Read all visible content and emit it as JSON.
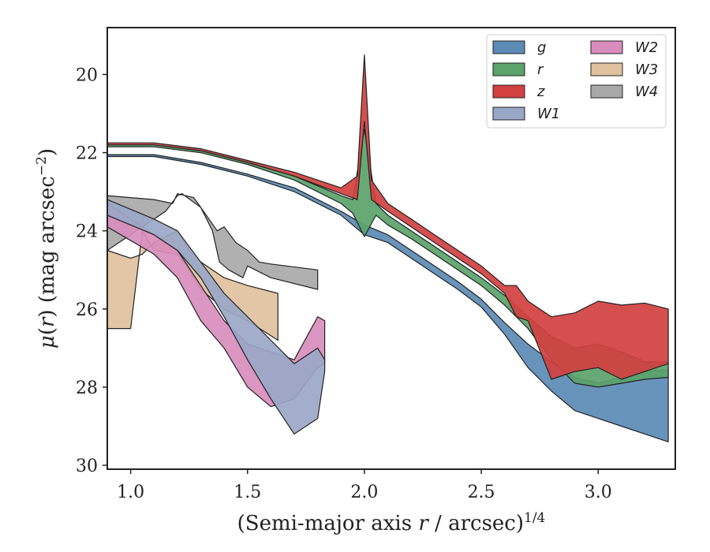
{
  "chart_data": {
    "type": "area",
    "xlabel": "(Semi-major axis r / arcsec)^1/4",
    "ylabel": "μ(r) (mag arcsec^-2)",
    "xlim": [
      0.9,
      3.33
    ],
    "ylim": [
      30.1,
      18.8
    ],
    "y_inverted": true,
    "x_ticks": [
      "1.0",
      "1.5",
      "2.0",
      "2.5",
      "3.0"
    ],
    "x_tick_values": [
      1.0,
      1.5,
      2.0,
      2.5,
      3.0
    ],
    "y_ticks": [
      "20",
      "22",
      "24",
      "26",
      "28",
      "30"
    ],
    "y_tick_values": [
      20,
      22,
      24,
      26,
      28,
      30
    ],
    "legend_position": "top-right",
    "series": [
      {
        "name": "W4",
        "color": "#a9a9a9",
        "upper": [
          [
            0.9,
            23.1
          ],
          [
            1.1,
            23.2
          ],
          [
            1.18,
            23.3
          ],
          [
            1.2,
            23.05
          ],
          [
            1.27,
            23.15
          ],
          [
            1.3,
            23.4
          ],
          [
            1.37,
            24.0
          ],
          [
            1.4,
            23.9
          ],
          [
            1.45,
            24.3
          ],
          [
            1.5,
            24.5
          ],
          [
            1.55,
            24.8
          ],
          [
            1.6,
            24.85
          ],
          [
            1.8,
            25.0
          ]
        ],
        "lower": [
          [
            0.9,
            24.5
          ],
          [
            1.1,
            23.7
          ],
          [
            1.15,
            23.5
          ],
          [
            1.2,
            23.1
          ],
          [
            1.22,
            23.05
          ],
          [
            1.3,
            23.4
          ],
          [
            1.35,
            24.0
          ],
          [
            1.38,
            24.8
          ],
          [
            1.42,
            25.0
          ],
          [
            1.48,
            25.2
          ],
          [
            1.5,
            24.9
          ],
          [
            1.6,
            25.2
          ],
          [
            1.8,
            25.5
          ]
        ]
      },
      {
        "name": "W3",
        "color": "#dfc19d",
        "upper": [
          [
            0.9,
            24.5
          ],
          [
            1.0,
            24.7
          ],
          [
            1.05,
            24.6
          ],
          [
            1.1,
            24.3
          ],
          [
            1.2,
            24.0
          ],
          [
            1.25,
            24.5
          ],
          [
            1.3,
            24.8
          ],
          [
            1.4,
            25.2
          ],
          [
            1.5,
            25.4
          ],
          [
            1.63,
            25.6
          ]
        ],
        "lower": [
          [
            0.9,
            26.5
          ],
          [
            1.0,
            26.5
          ],
          [
            1.05,
            24.0
          ],
          [
            1.1,
            24.5
          ],
          [
            1.2,
            24.6
          ],
          [
            1.25,
            25.0
          ],
          [
            1.3,
            25.5
          ],
          [
            1.4,
            26.0
          ],
          [
            1.5,
            26.3
          ],
          [
            1.63,
            26.8
          ]
        ]
      },
      {
        "name": "W2",
        "color": "#d98dbd",
        "upper": [
          [
            0.9,
            23.3
          ],
          [
            1.1,
            24.1
          ],
          [
            1.2,
            24.5
          ],
          [
            1.3,
            25.4
          ],
          [
            1.4,
            26.3
          ],
          [
            1.5,
            26.9
          ],
          [
            1.6,
            27.1
          ],
          [
            1.7,
            27.3
          ],
          [
            1.8,
            26.2
          ],
          [
            1.83,
            26.3
          ]
        ],
        "lower": [
          [
            0.9,
            23.9
          ],
          [
            1.1,
            24.6
          ],
          [
            1.2,
            25.2
          ],
          [
            1.3,
            26.3
          ],
          [
            1.4,
            27.0
          ],
          [
            1.5,
            28.0
          ],
          [
            1.6,
            28.5
          ],
          [
            1.7,
            28.3
          ],
          [
            1.8,
            27.5
          ],
          [
            1.83,
            27.4
          ]
        ]
      },
      {
        "name": "W1",
        "color": "#9aa7c7",
        "upper": [
          [
            0.9,
            23.2
          ],
          [
            1.1,
            23.7
          ],
          [
            1.2,
            24.0
          ],
          [
            1.3,
            24.8
          ],
          [
            1.4,
            25.6
          ],
          [
            1.5,
            26.2
          ],
          [
            1.6,
            26.8
          ],
          [
            1.7,
            27.4
          ],
          [
            1.8,
            27.0
          ],
          [
            1.83,
            27.3
          ]
        ],
        "lower": [
          [
            0.9,
            23.6
          ],
          [
            1.1,
            24.1
          ],
          [
            1.2,
            24.5
          ],
          [
            1.3,
            25.2
          ],
          [
            1.4,
            26.2
          ],
          [
            1.5,
            27.3
          ],
          [
            1.6,
            28.3
          ],
          [
            1.7,
            29.2
          ],
          [
            1.8,
            28.8
          ],
          [
            1.83,
            27.6
          ]
        ]
      },
      {
        "name": "g",
        "color": "#5b8ab5",
        "upper": [
          [
            0.9,
            22.05
          ],
          [
            1.1,
            22.05
          ],
          [
            1.3,
            22.25
          ],
          [
            1.5,
            22.55
          ],
          [
            1.7,
            22.9
          ],
          [
            1.9,
            23.5
          ],
          [
            2.0,
            23.85
          ],
          [
            2.1,
            24.1
          ],
          [
            2.2,
            24.5
          ],
          [
            2.3,
            24.9
          ],
          [
            2.4,
            25.3
          ],
          [
            2.5,
            25.75
          ],
          [
            2.6,
            26.35
          ],
          [
            2.7,
            26.9
          ],
          [
            2.8,
            27.35
          ],
          [
            2.9,
            27.75
          ],
          [
            3.0,
            27.9
          ],
          [
            3.1,
            27.75
          ],
          [
            3.2,
            27.6
          ],
          [
            3.3,
            27.55
          ]
        ],
        "lower": [
          [
            0.9,
            22.1
          ],
          [
            1.1,
            22.1
          ],
          [
            1.3,
            22.3
          ],
          [
            1.5,
            22.6
          ],
          [
            1.7,
            23.0
          ],
          [
            1.9,
            23.6
          ],
          [
            2.0,
            24.1
          ],
          [
            2.1,
            24.3
          ],
          [
            2.2,
            24.7
          ],
          [
            2.3,
            25.1
          ],
          [
            2.4,
            25.5
          ],
          [
            2.5,
            25.95
          ],
          [
            2.6,
            26.65
          ],
          [
            2.7,
            27.5
          ],
          [
            2.8,
            28.1
          ],
          [
            2.9,
            28.6
          ],
          [
            3.0,
            28.8
          ],
          [
            3.1,
            29.0
          ],
          [
            3.2,
            29.2
          ],
          [
            3.3,
            29.4
          ]
        ]
      },
      {
        "name": "r",
        "color": "#5aa36a",
        "upper": [
          [
            0.9,
            21.8
          ],
          [
            1.1,
            21.8
          ],
          [
            1.3,
            21.95
          ],
          [
            1.5,
            22.25
          ],
          [
            1.7,
            22.6
          ],
          [
            1.9,
            23.1
          ],
          [
            1.95,
            23.2
          ],
          [
            2.0,
            21.4
          ],
          [
            2.05,
            23.3
          ],
          [
            2.1,
            23.6
          ],
          [
            2.2,
            24.0
          ],
          [
            2.3,
            24.4
          ],
          [
            2.4,
            24.8
          ],
          [
            2.5,
            25.2
          ],
          [
            2.6,
            25.65
          ],
          [
            2.7,
            26.2
          ],
          [
            2.8,
            26.7
          ],
          [
            2.9,
            27.0
          ],
          [
            3.0,
            26.9
          ],
          [
            3.1,
            27.1
          ],
          [
            3.2,
            27.35
          ],
          [
            3.3,
            27.35
          ]
        ],
        "lower": [
          [
            0.9,
            21.85
          ],
          [
            1.1,
            21.85
          ],
          [
            1.3,
            22.0
          ],
          [
            1.5,
            22.3
          ],
          [
            1.7,
            22.7
          ],
          [
            1.9,
            23.3
          ],
          [
            1.95,
            23.55
          ],
          [
            2.0,
            24.15
          ],
          [
            2.05,
            23.6
          ],
          [
            2.1,
            23.85
          ],
          [
            2.2,
            24.2
          ],
          [
            2.3,
            24.6
          ],
          [
            2.4,
            25.0
          ],
          [
            2.5,
            25.4
          ],
          [
            2.6,
            25.9
          ],
          [
            2.7,
            26.5
          ],
          [
            2.8,
            27.3
          ],
          [
            2.9,
            27.9
          ],
          [
            3.0,
            28.0
          ],
          [
            3.1,
            27.9
          ],
          [
            3.2,
            27.8
          ],
          [
            3.3,
            27.75
          ]
        ]
      },
      {
        "name": "z",
        "color": "#d24040",
        "upper": [
          [
            0.9,
            21.75
          ],
          [
            1.1,
            21.75
          ],
          [
            1.3,
            21.9
          ],
          [
            1.5,
            22.2
          ],
          [
            1.7,
            22.5
          ],
          [
            1.9,
            22.9
          ],
          [
            1.97,
            22.6
          ],
          [
            2.0,
            19.5
          ],
          [
            2.03,
            22.7
          ],
          [
            2.1,
            23.3
          ],
          [
            2.2,
            23.7
          ],
          [
            2.3,
            24.1
          ],
          [
            2.4,
            24.5
          ],
          [
            2.5,
            24.9
          ],
          [
            2.6,
            25.4
          ],
          [
            2.65,
            25.4
          ],
          [
            2.7,
            25.8
          ],
          [
            2.8,
            26.2
          ],
          [
            2.9,
            26.1
          ],
          [
            3.0,
            25.8
          ],
          [
            3.1,
            25.9
          ],
          [
            3.2,
            25.85
          ],
          [
            3.3,
            26.0
          ]
        ],
        "lower": [
          [
            0.9,
            21.8
          ],
          [
            1.1,
            21.8
          ],
          [
            1.3,
            21.95
          ],
          [
            1.5,
            22.25
          ],
          [
            1.7,
            22.6
          ],
          [
            1.9,
            23.05
          ],
          [
            1.97,
            23.2
          ],
          [
            2.0,
            21.2
          ],
          [
            2.03,
            23.2
          ],
          [
            2.1,
            23.5
          ],
          [
            2.2,
            23.9
          ],
          [
            2.3,
            24.3
          ],
          [
            2.4,
            24.7
          ],
          [
            2.5,
            25.1
          ],
          [
            2.6,
            25.6
          ],
          [
            2.65,
            26.2
          ],
          [
            2.7,
            26.3
          ],
          [
            2.8,
            27.8
          ],
          [
            2.9,
            27.6
          ],
          [
            3.0,
            27.5
          ],
          [
            3.1,
            27.8
          ],
          [
            3.2,
            27.6
          ],
          [
            3.3,
            27.4
          ]
        ]
      }
    ],
    "legend": [
      {
        "label": "g",
        "color": "#5b8ab5"
      },
      {
        "label": "r",
        "color": "#5aa36a"
      },
      {
        "label": "z",
        "color": "#d24040"
      },
      {
        "label": "W1",
        "color": "#9aa7c7"
      },
      {
        "label": "W2",
        "color": "#d98dbd"
      },
      {
        "label": "W3",
        "color": "#dfc19d"
      },
      {
        "label": "W4",
        "color": "#a9a9a9"
      }
    ]
  }
}
